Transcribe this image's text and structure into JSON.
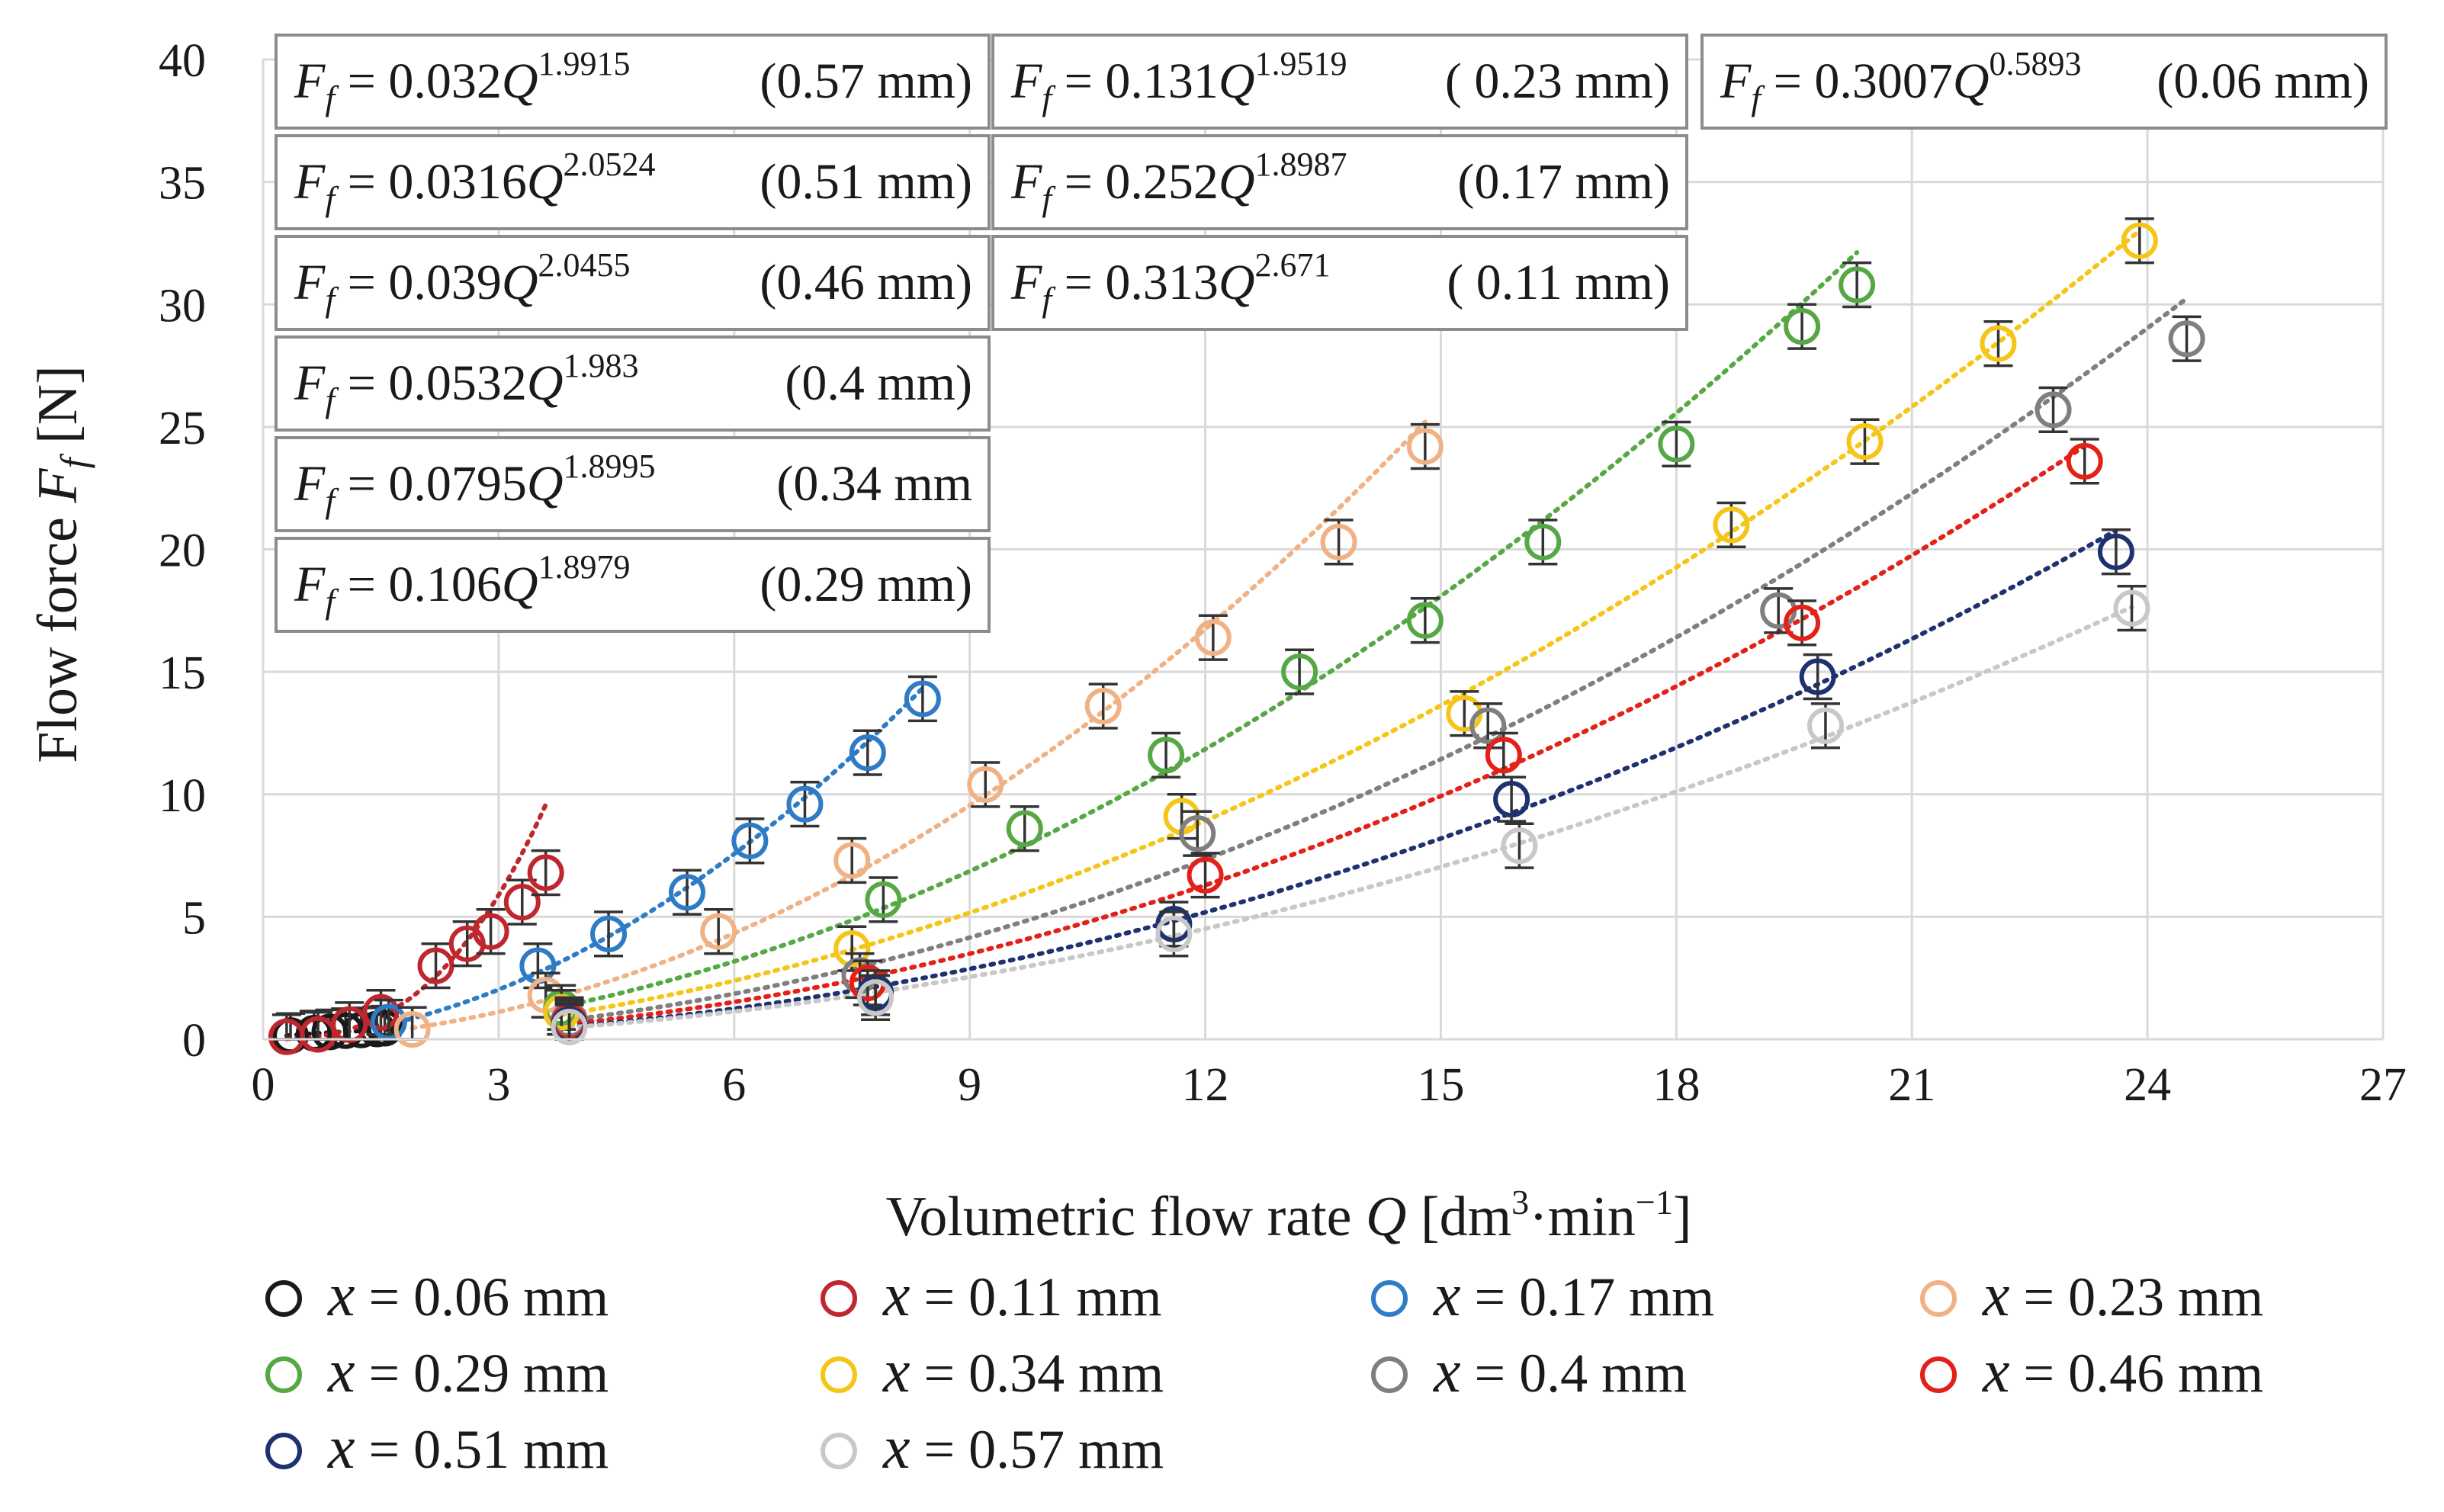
{
  "chart_data": {
    "type": "scatter",
    "title": "",
    "xlabel": "Volumetric flow rate Q [dm³·min⁻¹]",
    "xlabel_parts": {
      "main": "Volumetric flow rate ",
      "var": "Q",
      "unit": " [dm",
      "sup1": "3",
      "mid": "·min",
      "sup2": "−1",
      "close": "]"
    },
    "ylabel": "Flow force F_f [N]",
    "ylabel_parts": {
      "main": "Flow force ",
      "var": "F",
      "sub": "f",
      "unit": " [N]"
    },
    "xlim": [
      0,
      27
    ],
    "ylim": [
      0,
      40
    ],
    "xticks": [
      0,
      3,
      6,
      9,
      12,
      15,
      18,
      21,
      24,
      27
    ],
    "yticks": [
      0,
      5,
      10,
      15,
      20,
      25,
      30,
      35,
      40
    ],
    "grid": true,
    "legend_position": "bottom",
    "error_bar": 0.9,
    "series": [
      {
        "name": "x = 0.06 mm",
        "label": "= 0.06 mm",
        "color": "#1a1a1a",
        "a": 0.3007,
        "b": 0.5893,
        "fit_range": [
          0.3,
          1.6
        ],
        "x": [
          0.35,
          0.65,
          0.85,
          1.05,
          1.25,
          1.45,
          1.55
        ],
        "y": [
          0.15,
          0.25,
          0.3,
          0.35,
          0.38,
          0.42,
          0.45
        ]
      },
      {
        "name": "x = 0.11 mm",
        "label": "= 0.11 mm",
        "color": "#c0262d",
        "a": 0.313,
        "b": 2.671,
        "fit_range": [
          0.3,
          3.6
        ],
        "x": [
          0.3,
          0.7,
          1.1,
          1.5,
          2.2,
          2.6,
          2.9,
          3.3,
          3.6
        ],
        "y": [
          0.1,
          0.2,
          0.6,
          1.1,
          3.0,
          3.9,
          4.4,
          5.6,
          6.8
        ]
      },
      {
        "name": "x = 0.17 mm",
        "label": "= 0.17 mm",
        "color": "#2e7bc6",
        "a": 0.252,
        "b": 1.8987,
        "fit_range": [
          1.6,
          8.4
        ],
        "x": [
          1.6,
          3.5,
          4.4,
          5.4,
          6.2,
          6.9,
          7.7,
          8.4
        ],
        "y": [
          0.7,
          3.0,
          4.3,
          6.0,
          8.1,
          9.6,
          11.7,
          13.9
        ]
      },
      {
        "name": "x = 0.23 mm",
        "label": "= 0.23 mm",
        "color": "#f0b285",
        "a": 0.131,
        "b": 1.9519,
        "fit_range": [
          1.9,
          14.8
        ],
        "x": [
          1.9,
          3.6,
          5.8,
          7.5,
          9.2,
          10.7,
          12.1,
          13.7,
          14.8
        ],
        "y": [
          0.4,
          1.8,
          4.4,
          7.3,
          10.4,
          13.6,
          16.4,
          20.3,
          24.2
        ]
      },
      {
        "name": "x = 0.29 mm",
        "label": "= 0.29 mm",
        "color": "#56a844",
        "a": 0.106,
        "b": 1.8979,
        "fit_range": [
          3.8,
          20.3
        ],
        "x": [
          3.8,
          7.9,
          9.7,
          11.5,
          13.2,
          14.8,
          16.3,
          18.0,
          19.6,
          20.3
        ],
        "y": [
          1.3,
          5.7,
          8.6,
          11.6,
          15.0,
          17.1,
          20.3,
          24.3,
          29.1,
          30.8
        ]
      },
      {
        "name": "x = 0.34 mm",
        "label": "= 0.34 mm",
        "color": "#f5c518",
        "a": 0.0795,
        "b": 1.8995,
        "fit_range": [
          3.8,
          23.9
        ],
        "x": [
          3.8,
          7.5,
          11.7,
          15.3,
          18.7,
          20.4,
          22.1,
          23.9
        ],
        "y": [
          1.1,
          3.7,
          9.1,
          13.3,
          21.0,
          24.4,
          28.4,
          32.6
        ]
      },
      {
        "name": "x = 0.4 mm",
        "label": "= 0.4 mm",
        "color": "#7f7f7f",
        "a": 0.0532,
        "b": 1.983,
        "fit_range": [
          3.9,
          24.5
        ],
        "x": [
          3.9,
          7.6,
          11.9,
          15.6,
          19.3,
          22.8,
          24.5
        ],
        "y": [
          0.8,
          2.6,
          8.4,
          12.8,
          17.5,
          25.7,
          28.6
        ]
      },
      {
        "name": "x = 0.46 mm",
        "label": "= 0.46 mm",
        "color": "#e32119",
        "a": 0.039,
        "b": 2.0455,
        "fit_range": [
          3.9,
          23.2
        ],
        "x": [
          3.9,
          7.7,
          12.0,
          15.8,
          19.6,
          23.2
        ],
        "y": [
          0.7,
          2.3,
          6.7,
          11.6,
          17.0,
          23.6
        ]
      },
      {
        "name": "x = 0.51 mm",
        "label": "= 0.51 mm",
        "color": "#1f3270",
        "a": 0.0316,
        "b": 2.0524,
        "fit_range": [
          3.9,
          23.6
        ],
        "x": [
          3.9,
          7.8,
          11.6,
          15.9,
          19.8,
          23.6
        ],
        "y": [
          0.6,
          1.9,
          4.7,
          9.8,
          14.8,
          19.9
        ]
      },
      {
        "name": "x = 0.57 mm",
        "label": "= 0.57 mm",
        "color": "#c8c8c8",
        "a": 0.032,
        "b": 1.9915,
        "fit_range": [
          3.9,
          23.8
        ],
        "x": [
          3.9,
          7.8,
          11.6,
          16.0,
          19.9,
          23.8
        ],
        "y": [
          0.5,
          1.7,
          4.3,
          7.9,
          12.8,
          17.6
        ]
      }
    ],
    "equations": [
      {
        "coef": "0.032",
        "exp": "1.9915",
        "note": "(0.57 mm)"
      },
      {
        "coef": "0.131",
        "exp": "1.9519",
        "note": "( 0.23 mm)"
      },
      {
        "coef": "0.3007",
        "exp": "0.5893",
        "note": "(0.06 mm)"
      },
      {
        "coef": "0.0316",
        "exp": "2.0524",
        "note": "(0.51 mm)"
      },
      {
        "coef": "0.252",
        "exp": "1.8987",
        "note": "(0.17 mm)"
      },
      {
        "coef": "0.039",
        "exp": "2.0455",
        "note": "(0.46 mm)"
      },
      {
        "coef": "0.313",
        "exp": "2.671",
        "note": "( 0.11 mm)"
      },
      {
        "coef": "0.0532",
        "exp": "1.983",
        "note": "(0.4 mm)"
      },
      {
        "coef": "0.0795",
        "exp": "1.8995",
        "note": "(0.34 mm"
      },
      {
        "coef": "0.106",
        "exp": "1.8979",
        "note": "(0.29 mm)"
      }
    ],
    "equation_symbols": {
      "F": "F",
      "f": "f",
      "eq": " = ",
      "Q": "Q"
    },
    "legend_symbol": "x"
  }
}
